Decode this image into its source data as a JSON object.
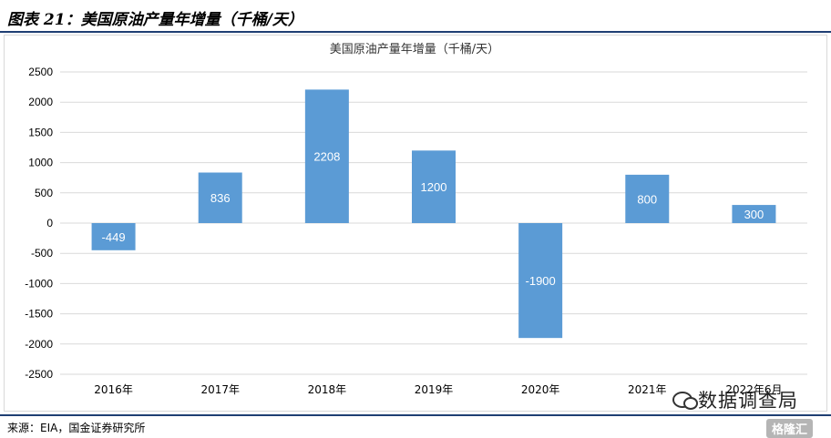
{
  "header": {
    "figure_title": "图表 21：美国原油产量年增量（千桶/天）"
  },
  "footer": {
    "source": "来源：EIA，国金证券研究所",
    "watermark": "格隆汇"
  },
  "overlay": {
    "wechat_label": "数据调查局"
  },
  "colors": {
    "bar": "#5b9bd5",
    "rule": "#1f3f73",
    "grid": "#d9d9d9"
  },
  "chart_data": {
    "type": "bar",
    "title": "美国原油产量年增量（千桶/天）",
    "categories": [
      "2016年",
      "2017年",
      "2018年",
      "2019年",
      "2020年",
      "2021年",
      "2022年6月"
    ],
    "values": [
      -449,
      836,
      2208,
      1200,
      -1900,
      800,
      300
    ],
    "data_labels": [
      "-449",
      "836",
      "2208",
      "1200",
      "-1900",
      "800",
      "300"
    ],
    "y_ticks": [
      2500,
      2000,
      1500,
      1000,
      500,
      0,
      -500,
      -1000,
      -1500,
      -2000,
      -2500
    ],
    "ylim": [
      -2500,
      2500
    ],
    "grid": true,
    "legend": "none",
    "xlabel": "",
    "ylabel": ""
  }
}
